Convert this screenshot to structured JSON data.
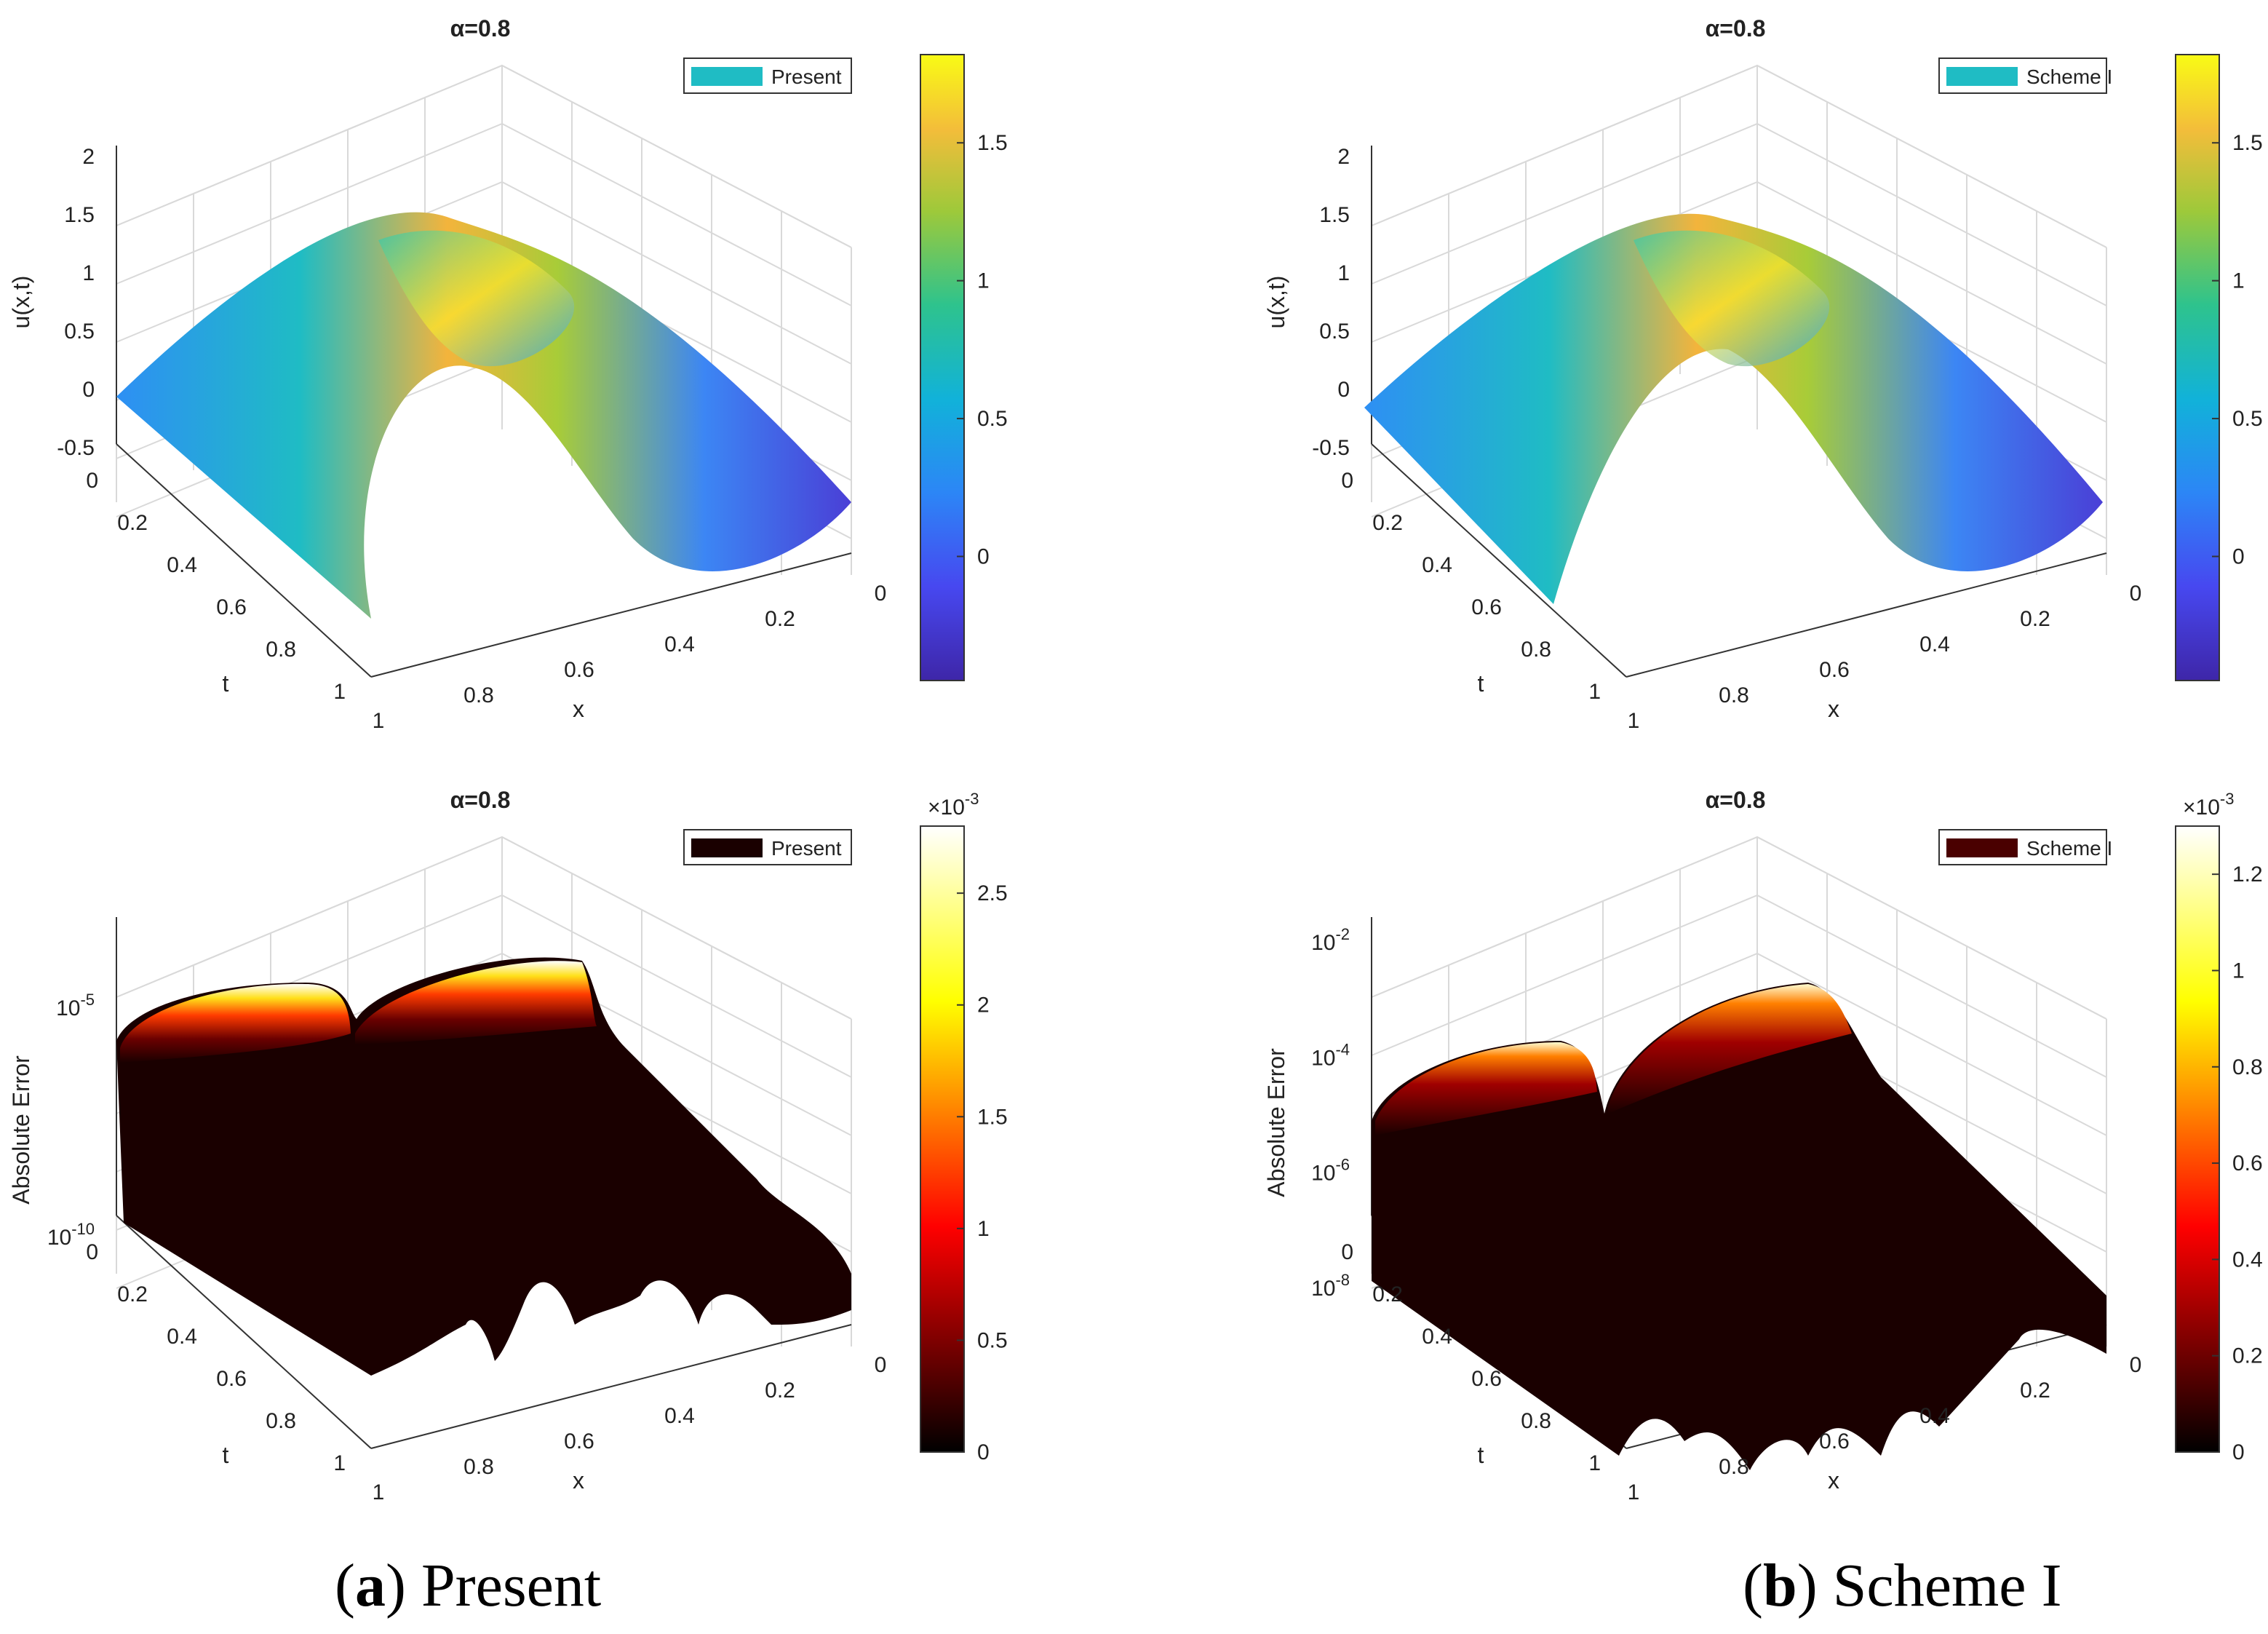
{
  "figure": {
    "captions": [
      {
        "label": "a",
        "text": "Present"
      },
      {
        "label": "b",
        "text": "Scheme I"
      }
    ]
  },
  "chart_data": [
    {
      "type": "surface3d",
      "panel": "a-top",
      "title": "α=0.8",
      "legend": "Present",
      "legend_color": "#1fbcc4",
      "xlabel": "x",
      "ylabel": "t",
      "zlabel": "u(x,t)",
      "x_ticks": [
        "0",
        "0.2",
        "0.4",
        "0.6",
        "0.8",
        "1"
      ],
      "t_ticks": [
        "0",
        "0.2",
        "0.4",
        "0.6",
        "0.8",
        "1"
      ],
      "z_ticks": [
        "-0.5",
        "0",
        "0.5",
        "1",
        "1.5",
        "2"
      ],
      "zlim": [
        -0.5,
        2
      ],
      "colormap": "parula",
      "colorbar_ticks": [
        "0",
        "0.5",
        "1",
        "1.5"
      ],
      "colorbar_range": [
        -0.45,
        1.82
      ]
    },
    {
      "type": "surface3d",
      "panel": "b-top",
      "title": "α=0.8",
      "legend": "Scheme I",
      "legend_color": "#1fbcc4",
      "xlabel": "x",
      "ylabel": "t",
      "zlabel": "u(x,t)",
      "x_ticks": [
        "0",
        "0.2",
        "0.4",
        "0.6",
        "0.8",
        "1"
      ],
      "t_ticks": [
        "0",
        "0.2",
        "0.4",
        "0.6",
        "0.8",
        "1"
      ],
      "z_ticks": [
        "-0.5",
        "0",
        "0.5",
        "1",
        "1.5",
        "2"
      ],
      "zlim": [
        -0.5,
        2
      ],
      "colormap": "parula",
      "colorbar_ticks": [
        "0",
        "0.5",
        "1",
        "1.5"
      ],
      "colorbar_range": [
        -0.45,
        1.82
      ]
    },
    {
      "type": "surface3d",
      "panel": "a-bottom",
      "title": "α=0.8",
      "legend": "Present",
      "legend_color": "#1a0000",
      "xlabel": "x",
      "ylabel": "t",
      "zlabel": "Absolute Error",
      "x_ticks": [
        "0",
        "0.2",
        "0.4",
        "0.6",
        "0.8",
        "1"
      ],
      "t_ticks": [
        "0",
        "0.2",
        "0.4",
        "0.6",
        "0.8",
        "1"
      ],
      "z_ticks": [
        "10^-10",
        "10^-5"
      ],
      "z_scale": "log",
      "colormap": "hot",
      "colorbar_ticks": [
        "0",
        "0.5",
        "1",
        "1.5",
        "2",
        "2.5"
      ],
      "colorbar_exponent": "×10^-3",
      "colorbar_range": [
        0,
        2.8
      ]
    },
    {
      "type": "surface3d",
      "panel": "b-bottom",
      "title": "α=0.8",
      "legend": "Scheme I",
      "legend_color": "#4a0000",
      "xlabel": "x",
      "ylabel": "t",
      "zlabel": "Absolute Error",
      "x_ticks": [
        "0",
        "0.2",
        "0.4",
        "0.6",
        "0.8",
        "1"
      ],
      "t_ticks": [
        "0",
        "0.2",
        "0.4",
        "0.6",
        "0.8",
        "1"
      ],
      "z_ticks": [
        "10^-8",
        "10^-6",
        "10^-4",
        "10^-2"
      ],
      "z_scale": "log",
      "colormap": "hot",
      "colorbar_ticks": [
        "0",
        "0.2",
        "0.4",
        "0.6",
        "0.8",
        "1",
        "1.2"
      ],
      "colorbar_exponent": "×10^-3",
      "colorbar_range": [
        0,
        1.3
      ]
    }
  ]
}
